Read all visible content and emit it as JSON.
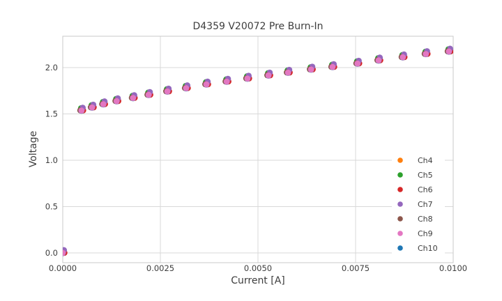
{
  "figure": {
    "title": "D4359 V20072 Pre Burn-In",
    "xlabel": "Current [A]",
    "ylabel": "Voltage"
  },
  "chart_data": {
    "type": "scatter",
    "title": "D4359 V20072 Pre Burn-In",
    "xlabel": "Current [A]",
    "ylabel": "Voltage",
    "grid": true,
    "legend_position": "lower right",
    "xlim": [
      0,
      0.01
    ],
    "ylim": [
      -0.105,
      2.34
    ],
    "x_ticks": {
      "values": [
        0,
        0.0025,
        0.005,
        0.0075,
        0.01
      ],
      "labels": [
        "0.0000",
        "0.0025",
        "0.0050",
        "0.0075",
        "0.0100"
      ]
    },
    "y_ticks": {
      "values": [
        0.0,
        0.5,
        1.0,
        1.5,
        2.0
      ],
      "labels": [
        "0.0",
        "0.5",
        "1.0",
        "1.5",
        "2.0"
      ]
    },
    "x": [
      0,
      0.00048,
      0.00075,
      0.00104,
      0.00138,
      0.0018,
      0.0022,
      0.00268,
      0.00316,
      0.00368,
      0.0042,
      0.00473,
      0.00527,
      0.00577,
      0.00636,
      0.00691,
      0.00755,
      0.00809,
      0.00871,
      0.0093,
      0.00989
    ],
    "series": [
      {
        "name": "Ch4",
        "color": "#ff7f0e",
        "di": 2e-05,
        "values": [
          0.012,
          1.55,
          1.583,
          1.618,
          1.651,
          1.685,
          1.719,
          1.756,
          1.791,
          1.832,
          1.862,
          1.895,
          1.929,
          1.959,
          1.993,
          2.02,
          2.057,
          2.091,
          2.125,
          2.16,
          2.187
        ]
      },
      {
        "name": "Ch5",
        "color": "#2ca02c",
        "di": -1e-05,
        "values": [
          0.024,
          1.562,
          1.595,
          1.63,
          1.663,
          1.697,
          1.731,
          1.768,
          1.803,
          1.844,
          1.874,
          1.907,
          1.941,
          1.971,
          2.005,
          2.032,
          2.069,
          2.103,
          2.137,
          2.172,
          2.199
        ]
      },
      {
        "name": "Ch6",
        "color": "#d62728",
        "di": 4.2e-05,
        "values": [
          0.002,
          1.54,
          1.573,
          1.608,
          1.641,
          1.675,
          1.709,
          1.746,
          1.781,
          1.822,
          1.852,
          1.885,
          1.919,
          1.949,
          1.983,
          2.01,
          2.047,
          2.081,
          2.115,
          2.15,
          2.177
        ]
      },
      {
        "name": "Ch7",
        "color": "#9467bd",
        "di": 3e-05,
        "values": [
          0.03,
          1.568,
          1.601,
          1.636,
          1.669,
          1.703,
          1.737,
          1.774,
          1.809,
          1.85,
          1.88,
          1.913,
          1.947,
          1.977,
          2.011,
          2.038,
          2.075,
          2.109,
          2.143,
          2.178,
          2.205
        ]
      },
      {
        "name": "Ch8",
        "color": "#8c564b",
        "di": -3e-05,
        "values": [
          0.002,
          1.54,
          1.573,
          1.608,
          1.641,
          1.675,
          1.709,
          1.746,
          1.781,
          1.822,
          1.852,
          1.885,
          1.919,
          1.949,
          1.983,
          2.01,
          2.047,
          2.081,
          2.115,
          2.15,
          2.177
        ]
      },
      {
        "name": "Ch9",
        "color": "#e377c2",
        "di": 0,
        "values": [
          0.0,
          1.538,
          1.571,
          1.606,
          1.639,
          1.673,
          1.707,
          1.744,
          1.779,
          1.82,
          1.85,
          1.883,
          1.917,
          1.947,
          1.981,
          2.008,
          2.045,
          2.079,
          2.113,
          2.148,
          2.175
        ]
      },
      {
        "name": "Ch10",
        "color": "#1f77b4",
        "di": 0,
        "values": [
          -0.002,
          1.536,
          1.569,
          1.604,
          1.637,
          1.671,
          1.705,
          1.742,
          1.777,
          1.818,
          1.848,
          1.881,
          1.915,
          1.945,
          1.979,
          2.006,
          2.043,
          2.077,
          2.111,
          2.146,
          2.173
        ]
      }
    ],
    "draw_order": [
      "Ch4",
      "Ch5",
      "Ch6",
      "Ch7",
      "Ch8",
      "Ch10",
      "Ch9"
    ],
    "colors": {
      "background": "#ffffff",
      "grid": "#d9d9d9",
      "border": "#c9c9c9",
      "text": "#3d3d3d"
    }
  }
}
